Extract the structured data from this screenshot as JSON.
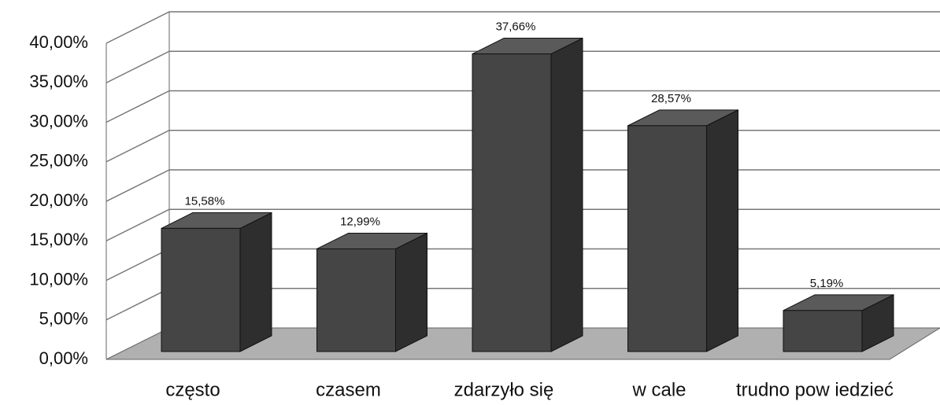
{
  "chart_data": {
    "type": "bar3d",
    "categories": [
      "często",
      "czasem",
      "zdarzyło się",
      "w cale",
      "trudno pow iedzieć"
    ],
    "values": [
      15.58,
      12.99,
      37.66,
      28.57,
      5.19
    ],
    "value_labels": [
      "15,58%",
      "12,99%",
      "37,66%",
      "28,57%",
      "5,19%"
    ],
    "color": "#454545",
    "ylim": [
      0,
      40
    ],
    "yticks": [
      {
        "value": 0,
        "label": "0,00%"
      },
      {
        "value": 5,
        "label": "5,00%"
      },
      {
        "value": 10,
        "label": "10,00%"
      },
      {
        "value": 15,
        "label": "15,00%"
      },
      {
        "value": 20,
        "label": "20,00%"
      },
      {
        "value": 25,
        "label": "25,00%"
      },
      {
        "value": 30,
        "label": "30,00%"
      },
      {
        "value": 35,
        "label": "35,00%"
      },
      {
        "value": 40,
        "label": "40,00%"
      }
    ],
    "grid": true
  }
}
